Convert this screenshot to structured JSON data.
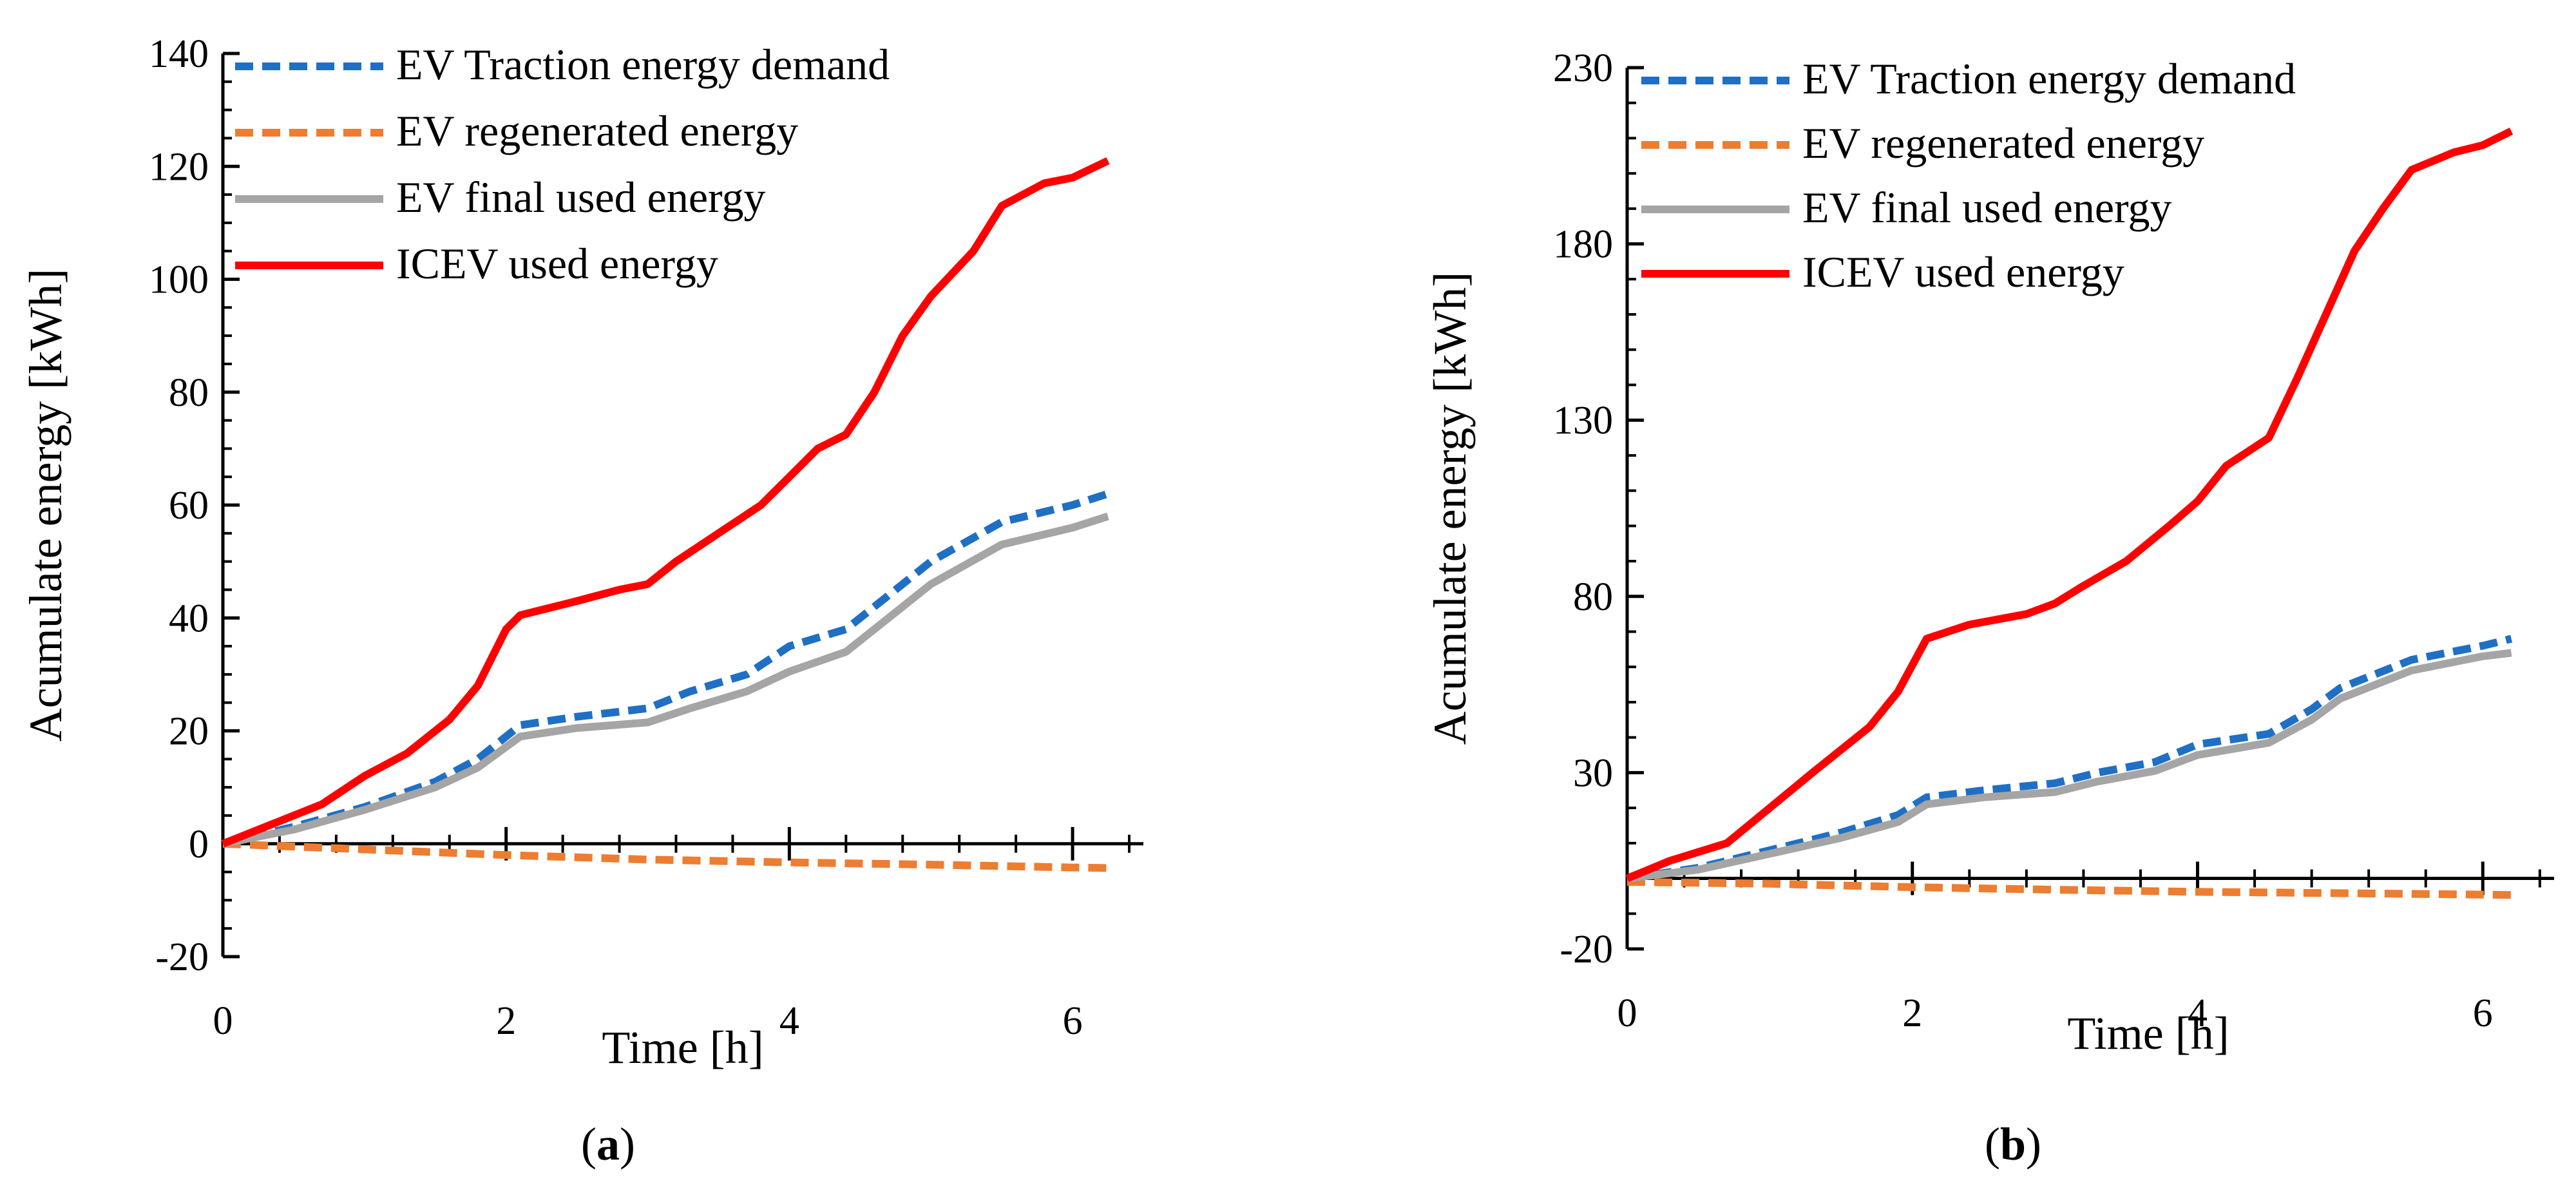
{
  "figure": {
    "panels": [
      {
        "label_open": "(",
        "label_letter": "a",
        "label_close": ")"
      },
      {
        "label_open": "(",
        "label_letter": "b",
        "label_close": ")"
      }
    ]
  },
  "chart_data": [
    {
      "type": "line",
      "panel": "a",
      "title": "",
      "xlabel": "Time [h]",
      "ylabel": "Acumulate energy [kWh]",
      "xlim": [
        0,
        6.5
      ],
      "ylim": [
        -20,
        140
      ],
      "xticks": [
        0,
        2,
        4,
        6
      ],
      "yticks": [
        -20,
        0,
        20,
        40,
        60,
        80,
        100,
        120,
        140
      ],
      "legend_position": "top-left",
      "series": [
        {
          "name": "EV Traction energy demand",
          "color": "#1f6fc5",
          "style": "dashed",
          "x": [
            0,
            0.5,
            1.0,
            1.5,
            1.8,
            2.1,
            2.5,
            3.0,
            3.3,
            3.7,
            4.0,
            4.4,
            4.7,
            5.0,
            5.5,
            6.0,
            6.25
          ],
          "y": [
            0,
            3,
            6.5,
            11,
            15,
            21,
            22.5,
            24,
            27,
            30,
            35,
            38,
            44,
            50,
            57,
            60,
            62
          ]
        },
        {
          "name": "EV regenerated energy",
          "color": "#ed7d31",
          "style": "dashed",
          "x": [
            0,
            0.5,
            1.0,
            1.5,
            2.0,
            3.0,
            4.0,
            5.0,
            6.0,
            6.25
          ],
          "y": [
            0,
            -0.5,
            -1,
            -1.5,
            -2,
            -2.8,
            -3.3,
            -3.7,
            -4.2,
            -4.3
          ]
        },
        {
          "name": "EV final used energy",
          "color": "#a5a5a5",
          "style": "solid",
          "x": [
            0,
            0.5,
            1.0,
            1.5,
            1.8,
            2.1,
            2.5,
            3.0,
            3.3,
            3.7,
            4.0,
            4.4,
            4.7,
            5.0,
            5.5,
            6.0,
            6.25
          ],
          "y": [
            0,
            2.5,
            6,
            10,
            13.5,
            19,
            20.5,
            21.5,
            24,
            27,
            30.5,
            34,
            40,
            46,
            53,
            56,
            58
          ]
        },
        {
          "name": "ICEV used energy",
          "color": "#ff0000",
          "style": "solid",
          "x": [
            0,
            0.3,
            0.7,
            1.0,
            1.3,
            1.6,
            1.8,
            2.0,
            2.1,
            2.5,
            2.8,
            3.0,
            3.2,
            3.5,
            3.8,
            4.0,
            4.2,
            4.4,
            4.6,
            4.8,
            5.0,
            5.3,
            5.5,
            5.8,
            6.0,
            6.25
          ],
          "y": [
            0,
            3,
            7,
            12,
            16,
            22,
            28,
            38,
            40.5,
            43,
            45,
            46,
            50,
            55,
            60,
            65,
            70,
            72.5,
            80,
            90,
            97,
            105,
            113,
            117,
            118,
            121
          ]
        }
      ]
    },
    {
      "type": "line",
      "panel": "b",
      "title": "",
      "xlabel": "Time [h]",
      "ylabel": "Acumulate energy [kWh]",
      "xlim": [
        0,
        6.5
      ],
      "ylim": [
        -20,
        230
      ],
      "xticks": [
        0,
        2,
        4,
        6
      ],
      "yticks": [
        -20,
        30,
        80,
        130,
        180,
        230
      ],
      "legend_position": "top-left",
      "series": [
        {
          "name": "EV Traction energy demand",
          "color": "#1f6fc5",
          "style": "dashed",
          "x": [
            0,
            0.5,
            1.0,
            1.5,
            1.9,
            2.1,
            2.5,
            3.0,
            3.3,
            3.7,
            4.0,
            4.5,
            4.8,
            5.0,
            5.5,
            6.0,
            6.2
          ],
          "y": [
            0,
            3,
            8,
            13,
            18,
            23,
            25,
            27,
            30,
            33,
            38,
            41,
            48,
            54,
            62,
            66,
            68
          ]
        },
        {
          "name": "EV regenerated energy",
          "color": "#ed7d31",
          "style": "dashed",
          "x": [
            0,
            1.0,
            2.0,
            3.0,
            4.0,
            5.0,
            6.0,
            6.2
          ],
          "y": [
            -1,
            -1.5,
            -2.5,
            -3.2,
            -3.8,
            -4.2,
            -4.6,
            -4.7
          ]
        },
        {
          "name": "EV final used energy",
          "color": "#a5a5a5",
          "style": "solid",
          "x": [
            0,
            0.5,
            1.0,
            1.5,
            1.9,
            2.1,
            2.5,
            3.0,
            3.3,
            3.7,
            4.0,
            4.5,
            4.8,
            5.0,
            5.5,
            6.0,
            6.2
          ],
          "y": [
            0,
            2.5,
            7,
            11.5,
            16,
            21,
            23,
            24.5,
            27.5,
            30.5,
            35,
            38.5,
            45,
            51,
            59,
            63,
            64
          ]
        },
        {
          "name": "ICEV used energy",
          "color": "#ff0000",
          "style": "solid",
          "x": [
            0,
            0.3,
            0.7,
            1.0,
            1.3,
            1.7,
            1.9,
            2.1,
            2.4,
            2.8,
            3.0,
            3.2,
            3.5,
            3.8,
            4.0,
            4.2,
            4.5,
            4.7,
            4.9,
            5.1,
            5.3,
            5.5,
            5.8,
            6.0,
            6.2
          ],
          "y": [
            0,
            5,
            10,
            20,
            30,
            43,
            53,
            68,
            72,
            75,
            78,
            83,
            90,
            100,
            107,
            117,
            125,
            142,
            160,
            178,
            190,
            201,
            206,
            208,
            212
          ]
        }
      ]
    }
  ]
}
